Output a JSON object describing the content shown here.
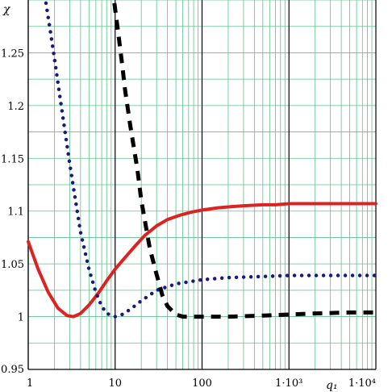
{
  "chart_data": {
    "type": "line",
    "x_scale": "log",
    "xlim": [
      1,
      10000
    ],
    "ylim": [
      0.95,
      1.3
    ],
    "grid": true,
    "ylabel": "χ",
    "xlabel": "q₁",
    "x_ticks": [
      {
        "value": 1,
        "label": "1"
      },
      {
        "value": 10,
        "label": "10"
      },
      {
        "value": 100,
        "label": "100"
      },
      {
        "value": 1000,
        "label": "1·10³"
      },
      {
        "value": 10000,
        "label": "1·10⁴"
      }
    ],
    "y_ticks": [
      {
        "value": 0.95,
        "label": "0.95"
      },
      {
        "value": 1.0,
        "label": "1"
      },
      {
        "value": 1.05,
        "label": "1.05"
      },
      {
        "value": 1.1,
        "label": "1.1"
      },
      {
        "value": 1.15,
        "label": "1.15"
      },
      {
        "value": 1.2,
        "label": "1.2"
      },
      {
        "value": 1.25,
        "label": "1.25"
      }
    ],
    "colors": {
      "grid": "#5fbf8f",
      "axis": "#000000",
      "solid": "#dd2222",
      "dotted": "#1a1a7a",
      "dashed": "#000000"
    },
    "series": [
      {
        "style": "solid",
        "x": [
          1,
          1.3,
          1.7,
          2.2,
          2.8,
          3.3,
          4,
          5,
          6.5,
          8,
          10,
          13,
          17,
          22,
          30,
          40,
          55,
          75,
          100,
          150,
          200,
          300,
          500,
          700,
          1000,
          2000,
          5000,
          10000
        ],
        "y": [
          1.071,
          1.045,
          1.023,
          1.008,
          1.001,
          1.0,
          1.003,
          1.011,
          1.023,
          1.034,
          1.045,
          1.056,
          1.067,
          1.077,
          1.086,
          1.092,
          1.096,
          1.099,
          1.101,
          1.103,
          1.104,
          1.105,
          1.106,
          1.106,
          1.107,
          1.107,
          1.107,
          1.107
        ]
      },
      {
        "style": "dotted",
        "x": [
          1.6,
          1.8,
          2.0,
          2.3,
          2.6,
          3.0,
          3.5,
          4.0,
          5.0,
          6.0,
          7.0,
          8.0,
          10,
          12,
          15,
          20,
          30,
          50,
          100,
          200,
          500,
          1000,
          2000,
          5000,
          10000
        ],
        "y": [
          1.297,
          1.27,
          1.245,
          1.21,
          1.18,
          1.145,
          1.11,
          1.08,
          1.045,
          1.023,
          1.01,
          1.003,
          1.0,
          1.002,
          1.007,
          1.015,
          1.025,
          1.031,
          1.035,
          1.037,
          1.038,
          1.039,
          1.039,
          1.039,
          1.039
        ]
      },
      {
        "style": "dashed",
        "x": [
          9.8,
          11,
          12,
          13,
          15,
          18,
          20,
          25,
          30,
          35,
          40,
          50,
          60,
          75,
          100,
          150,
          200,
          500,
          1000,
          2000,
          5000,
          10000
        ],
        "y": [
          1.297,
          1.265,
          1.24,
          1.215,
          1.18,
          1.14,
          1.11,
          1.065,
          1.04,
          1.02,
          1.01,
          1.002,
          1.0,
          1.0,
          1.0,
          1.0,
          1.0,
          1.001,
          1.002,
          1.003,
          1.004,
          1.004
        ]
      }
    ]
  }
}
